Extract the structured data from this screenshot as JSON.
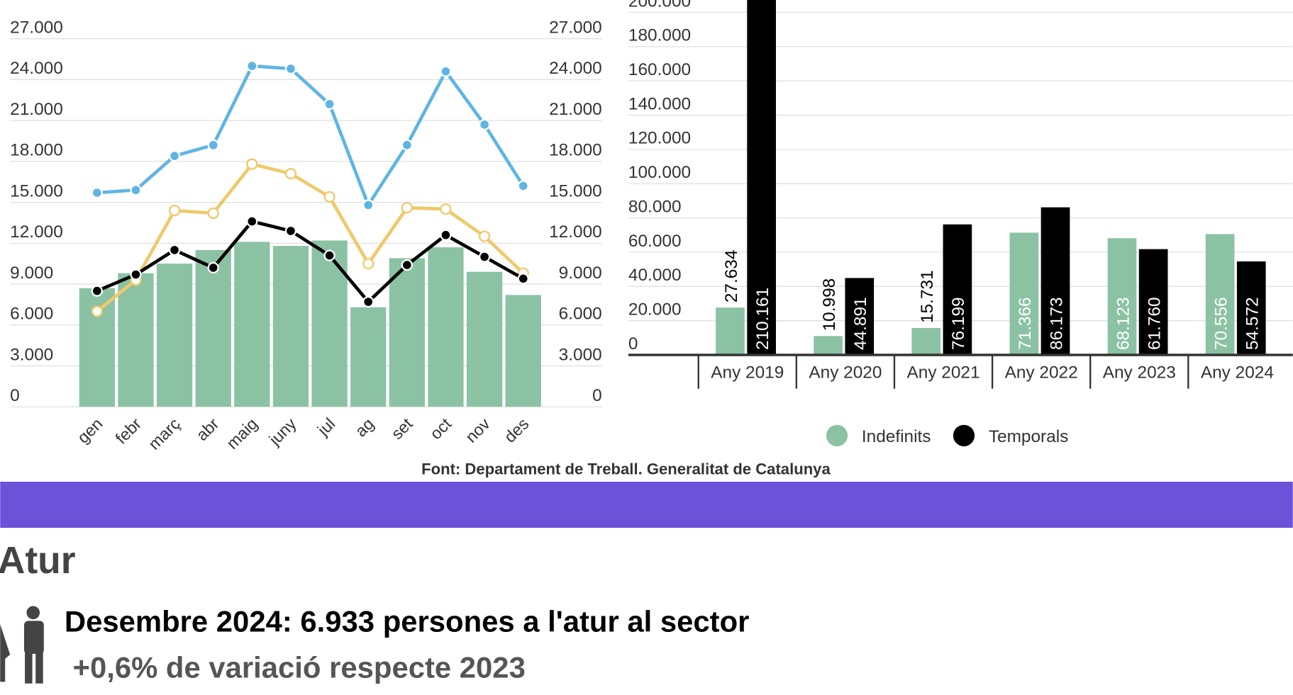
{
  "chart_data": [
    {
      "type": "bar",
      "categories": [
        "gen",
        "febr",
        "març",
        "abr",
        "maig",
        "juny",
        "jul",
        "ag",
        "set",
        "oct",
        "nov",
        "des"
      ],
      "series": [
        {
          "type": "bar",
          "color": "#8cc2a4",
          "values": [
            8700,
            9800,
            10500,
            11500,
            12100,
            11800,
            12200,
            7300,
            10900,
            11700,
            9900,
            8200
          ]
        },
        {
          "type": "line",
          "color": "#5fb4e4",
          "values": [
            15700,
            15900,
            18400,
            19200,
            25000,
            24800,
            22200,
            14800,
            19200,
            24600,
            20700,
            16200
          ]
        },
        {
          "type": "line",
          "color": "#efc96a",
          "values": [
            7000,
            9300,
            14400,
            14200,
            17800,
            17100,
            15400,
            10500,
            14600,
            14500,
            12500,
            9800
          ]
        },
        {
          "type": "line",
          "color": "#000000",
          "values": [
            8500,
            9700,
            11500,
            10200,
            13600,
            12900,
            11100,
            7700,
            10400,
            12600,
            11000,
            9400
          ]
        }
      ],
      "ylim": [
        0,
        27000
      ],
      "yticks": [
        0,
        {
          "value": 3000,
          "label": "3.000"
        },
        {
          "value": 6000,
          "label": "6.000"
        },
        {
          "value": 9000,
          "label": "9.000"
        },
        {
          "value": 12000,
          "label": "12.000"
        },
        {
          "value": 15000,
          "label": "15.000"
        },
        {
          "value": 18000,
          "label": "18.000"
        },
        {
          "value": 21000,
          "label": "21.000"
        },
        {
          "value": 24000,
          "label": "24.000"
        },
        {
          "value": 27000,
          "label": "27.000"
        }
      ],
      "y2lim": [
        0,
        27000
      ],
      "y2ticks": [
        0,
        {
          "value": 3000,
          "label": "3.000"
        },
        {
          "value": 6000,
          "label": "6.000"
        },
        {
          "value": 9000,
          "label": "9.000"
        },
        {
          "value": 12000,
          "label": "12.000"
        },
        {
          "value": 15000,
          "label": "15.000"
        },
        {
          "value": 18000,
          "label": "18.000"
        },
        {
          "value": 21000,
          "label": "21.000"
        },
        {
          "value": 24000,
          "label": "24.000"
        },
        {
          "value": 27000,
          "label": "27.000"
        }
      ],
      "grid": true
    },
    {
      "type": "grouped_bar",
      "categories": [
        "Any 2019",
        "Any 2020",
        "Any 2021",
        "Any 2022",
        "Any 2023",
        "Any 2024"
      ],
      "series": [
        {
          "name": "Indefinits",
          "color": "#8cc2a4",
          "values": [
            27634,
            10998,
            15731,
            71366,
            68123,
            70556
          ],
          "value_labels": [
            "27.634",
            "10.998",
            "15.731",
            "71.366",
            "68.123",
            "70.556"
          ]
        },
        {
          "name": "Temporals",
          "color": "#000000",
          "values": [
            210161,
            44891,
            76199,
            86173,
            61760,
            54572
          ],
          "value_labels": [
            "210.161",
            "44.891",
            "76.199",
            "86.173",
            "61.760",
            "54.572"
          ]
        }
      ],
      "ylim": [
        0,
        200000
      ],
      "yticks": [
        0,
        {
          "value": 20000,
          "label": "20.000"
        },
        {
          "value": 40000,
          "label": "40.000"
        },
        {
          "value": 60000,
          "label": "60.000"
        },
        {
          "value": 80000,
          "label": "80.000"
        },
        {
          "value": 100000,
          "label": "100.000"
        },
        {
          "value": 120000,
          "label": "120.000"
        },
        {
          "value": 140000,
          "label": "140.000"
        },
        {
          "value": 160000,
          "label": "160.000"
        },
        {
          "value": 180000,
          "label": "180.000"
        },
        {
          "value": 200000,
          "label": "200.000"
        }
      ],
      "grid": true,
      "legend": "bottom"
    }
  ],
  "source": "Font: Departament de Treball. Generalitat de Catalunya",
  "section_title": "Atur",
  "headline": "Desembre 2024: 6.933 persones a l'atur al sector",
  "subline": "+0,6% de variació respecte 2023"
}
